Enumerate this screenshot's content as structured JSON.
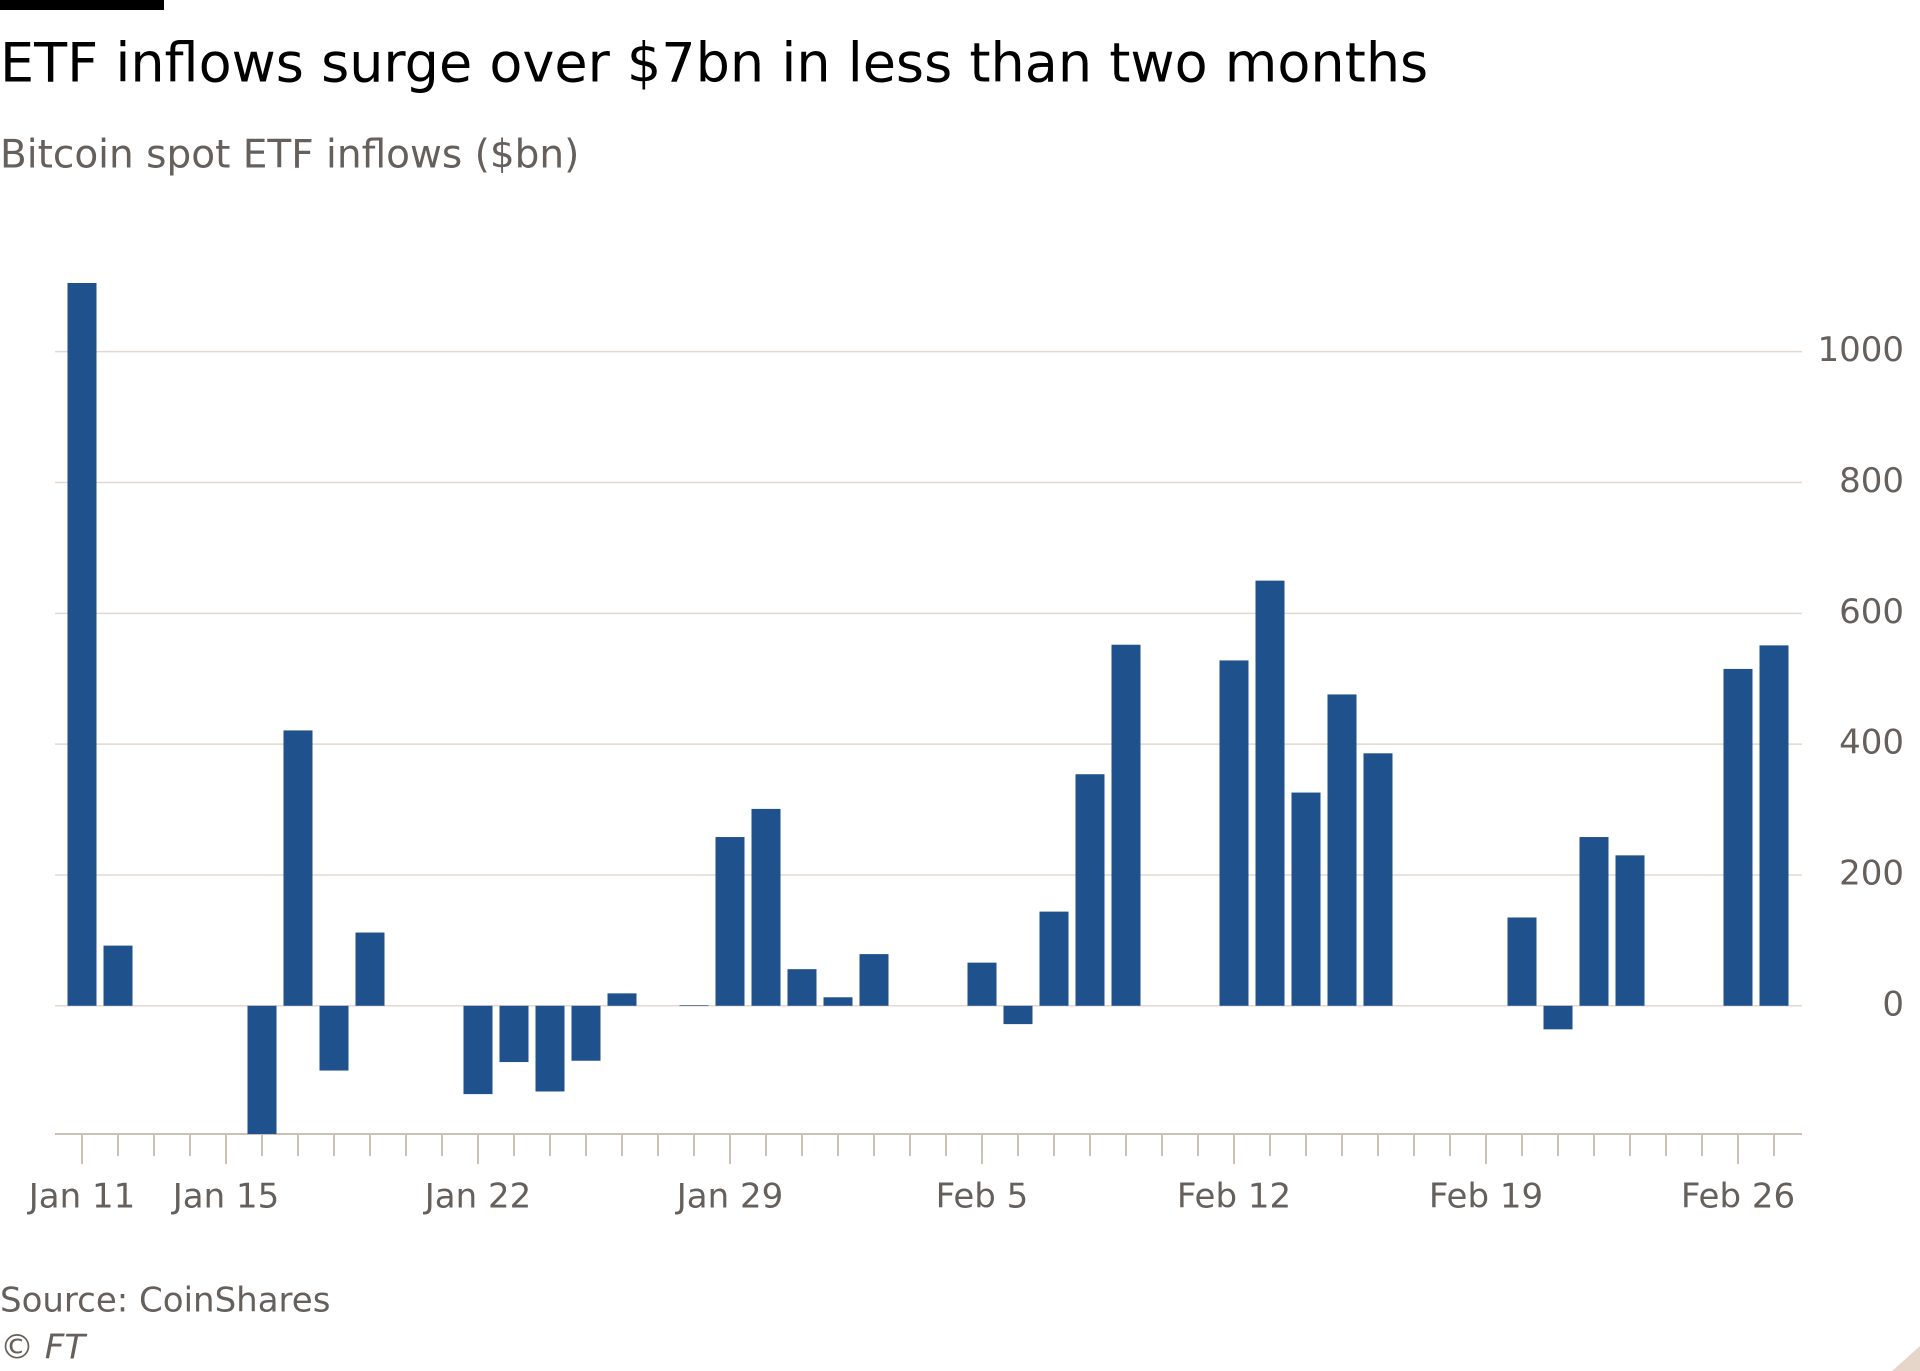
{
  "chart_data": {
    "type": "bar",
    "title": "ETF inflows surge over $7bn in less than two months",
    "subtitle": "Bitcoin spot ETF inflows ($bn)",
    "source": "Source: CoinShares",
    "credit": "© FT",
    "categories": [
      "Jan 11",
      null,
      null,
      null,
      "Jan 15",
      null,
      null,
      null,
      null,
      null,
      null,
      "Jan 22",
      null,
      null,
      null,
      null,
      null,
      null,
      "Jan 29",
      null,
      null,
      null,
      null,
      null,
      null,
      "Feb 5",
      null,
      null,
      null,
      null,
      null,
      null,
      "Feb 12",
      null,
      null,
      null,
      null,
      null,
      null,
      "Feb 19",
      null,
      null,
      null,
      null,
      null,
      null,
      "Feb 26",
      null
    ],
    "values": [
      1105,
      92,
      null,
      null,
      null,
      -196,
      421,
      -99,
      112,
      null,
      null,
      -135,
      -86,
      -131,
      -84,
      19,
      null,
      1,
      258,
      301,
      56,
      13,
      79,
      null,
      null,
      66,
      -28,
      144,
      354,
      552,
      null,
      null,
      528,
      650,
      326,
      476,
      386,
      null,
      null,
      null,
      135,
      -36,
      258,
      230,
      null,
      null,
      515,
      551
    ],
    "color": "#1f528c",
    "ylim": [
      -196,
      1105
    ],
    "yticks": [
      0,
      200,
      400,
      600,
      800,
      1000
    ],
    "grid": true
  }
}
